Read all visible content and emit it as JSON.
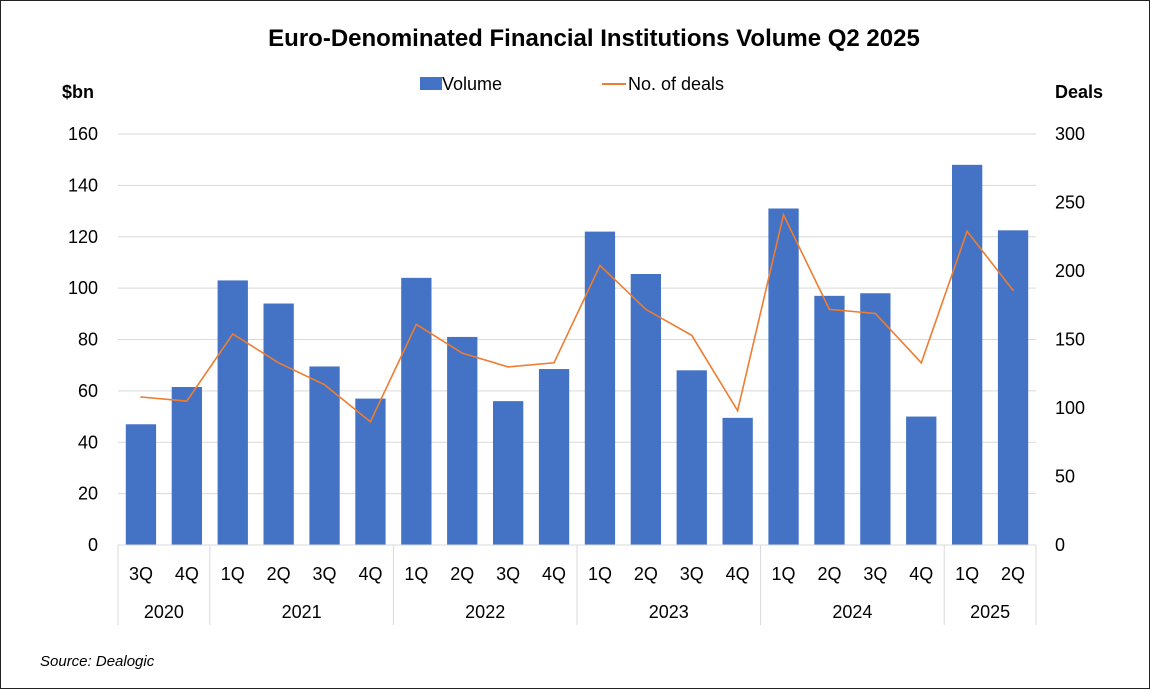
{
  "chart_data": {
    "type": "bar",
    "title": "Euro-Denominated Financial Institutions Volume Q2 2025",
    "y_left_label": "$bn",
    "y_right_label": "Deals",
    "y_left_lim": [
      0,
      160
    ],
    "y_right_lim": [
      0,
      300
    ],
    "y_left_ticks": [
      "0",
      "20",
      "40",
      "60",
      "80",
      "100",
      "120",
      "140",
      "160"
    ],
    "y_right_ticks": [
      "0",
      "50",
      "100",
      "150",
      "200",
      "250",
      "300"
    ],
    "grid": true,
    "legend_position": "top-center",
    "colors": {
      "volume": "#4472C4",
      "deals": "#ED7D31"
    },
    "categories": [
      "3Q",
      "4Q",
      "1Q",
      "2Q",
      "3Q",
      "4Q",
      "1Q",
      "2Q",
      "3Q",
      "4Q",
      "1Q",
      "2Q",
      "3Q",
      "4Q",
      "1Q",
      "2Q",
      "3Q",
      "4Q",
      "1Q",
      "2Q"
    ],
    "years": [
      {
        "label": "2020",
        "span": 2
      },
      {
        "label": "2021",
        "span": 4
      },
      {
        "label": "2022",
        "span": 4
      },
      {
        "label": "2023",
        "span": 4
      },
      {
        "label": "2024",
        "span": 4
      },
      {
        "label": "2025",
        "span": 2
      }
    ],
    "series": [
      {
        "name": "Volume",
        "type": "bar",
        "axis": "left",
        "values": [
          47,
          61.5,
          103,
          94,
          69.5,
          57,
          104,
          81,
          56,
          68.5,
          122,
          105.5,
          68,
          49.5,
          131,
          97,
          98,
          50,
          148,
          122.5
        ]
      },
      {
        "name": "No. of deals",
        "type": "line",
        "axis": "right",
        "values": [
          108,
          105,
          154,
          133,
          117,
          90,
          161,
          140,
          130,
          133,
          204,
          172,
          153,
          98,
          241,
          172,
          169,
          133,
          229,
          186
        ]
      }
    ]
  },
  "source": "Source: Dealogic"
}
